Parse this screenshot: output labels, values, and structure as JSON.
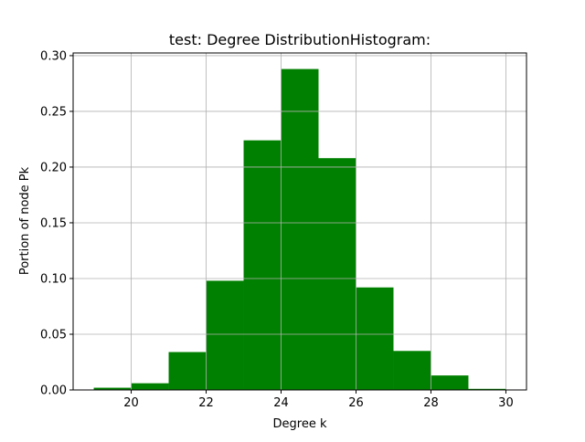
{
  "chart_data": {
    "type": "bar",
    "title": "test: Degree DistributionHistogram:",
    "xlabel": "Degree k",
    "ylabel": "Portion of node Pk",
    "xlim": [
      18.45,
      30.55
    ],
    "ylim": [
      0,
      0.3024
    ],
    "xticks": [
      20,
      22,
      24,
      26,
      28,
      30
    ],
    "xtick_labels": [
      "20",
      "22",
      "24",
      "26",
      "28",
      "30"
    ],
    "yticks": [
      0.0,
      0.05,
      0.1,
      0.15,
      0.2,
      0.25,
      0.3
    ],
    "ytick_labels": [
      "0.00",
      "0.05",
      "0.10",
      "0.15",
      "0.20",
      "0.25",
      "0.30"
    ],
    "grid": true,
    "bar_color": "#008000",
    "bins": [
      {
        "x0": 19,
        "x1": 20,
        "value": 0.002
      },
      {
        "x0": 20,
        "x1": 21,
        "value": 0.006
      },
      {
        "x0": 21,
        "x1": 22,
        "value": 0.034
      },
      {
        "x0": 22,
        "x1": 23,
        "value": 0.098
      },
      {
        "x0": 23,
        "x1": 24,
        "value": 0.224
      },
      {
        "x0": 24,
        "x1": 25,
        "value": 0.288
      },
      {
        "x0": 25,
        "x1": 26,
        "value": 0.208
      },
      {
        "x0": 26,
        "x1": 27,
        "value": 0.092
      },
      {
        "x0": 27,
        "x1": 28,
        "value": 0.035
      },
      {
        "x0": 28,
        "x1": 29,
        "value": 0.013
      },
      {
        "x0": 29,
        "x1": 30,
        "value": 0.001
      }
    ]
  }
}
